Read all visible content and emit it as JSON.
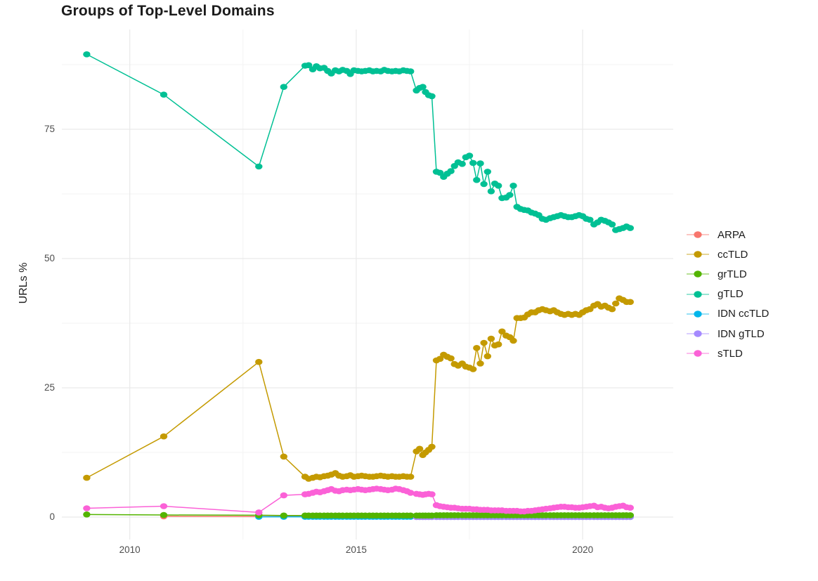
{
  "title": "Groups of Top-Level Domains",
  "axes": {
    "y_title": "URLs %"
  },
  "legend": {
    "items": [
      {
        "label": "ARPA",
        "color": "#F8766D"
      },
      {
        "label": "ccTLD",
        "color": "#C49A00"
      },
      {
        "label": "grTLD",
        "color": "#53B400"
      },
      {
        "label": "gTLD",
        "color": "#00C094"
      },
      {
        "label": "IDN ccTLD",
        "color": "#00B6EB"
      },
      {
        "label": "IDN gTLD",
        "color": "#A58AFF"
      },
      {
        "label": "sTLD",
        "color": "#FB61D7"
      }
    ]
  },
  "chart_data": {
    "type": "line",
    "title": "Groups of Top-Level Domains",
    "xlabel": "",
    "ylabel": "URLs %",
    "legend_position": "right",
    "grid": "on",
    "axis": {
      "xlim": [
        2008.5,
        2022.0
      ],
      "ylim": [
        -4.35,
        94.3
      ],
      "x_ticks": [
        {
          "v": 2010,
          "label": "2010"
        },
        {
          "v": 2015,
          "label": "2015"
        },
        {
          "v": 2020,
          "label": "2020"
        }
      ],
      "y_ticks": [
        {
          "v": 0,
          "label": "0"
        },
        {
          "v": 25,
          "label": "25"
        },
        {
          "v": 50,
          "label": "50"
        },
        {
          "v": 75,
          "label": "75"
        }
      ],
      "x_minor": [
        2012.5,
        2017.5
      ],
      "y_minor": [
        12.5,
        37.5,
        62.5,
        87.5
      ]
    },
    "x_grids": {
      "early": [
        2009.05,
        2010.75,
        2012.85,
        2013.4
      ],
      "mid": [
        2013.87,
        2013.95,
        2014.04,
        2014.12,
        2014.2,
        2014.29,
        2014.37,
        2014.45,
        2014.54,
        2014.62,
        2014.7,
        2014.79,
        2014.87,
        2014.95,
        2015.04,
        2015.12,
        2015.2,
        2015.29,
        2015.37,
        2015.45,
        2015.54,
        2015.62,
        2015.7,
        2015.79,
        2015.87,
        2015.95,
        2016.04,
        2016.12,
        2016.2
      ],
      "gap": [
        2016.33,
        2016.4,
        2016.47,
        2016.53,
        2016.6,
        2016.67
      ],
      "tail": [
        2016.77,
        2016.85,
        2016.93,
        2017.01,
        2017.09,
        2017.17,
        2017.25,
        2017.34,
        2017.42,
        2017.5,
        2017.58,
        2017.66,
        2017.74,
        2017.82,
        2017.9,
        2017.98,
        2018.06,
        2018.14,
        2018.22,
        2018.31,
        2018.39,
        2018.47,
        2018.55,
        2018.63,
        2018.71,
        2018.79,
        2018.87,
        2018.95,
        2019.03,
        2019.11,
        2019.19,
        2019.28,
        2019.36,
        2019.44,
        2019.52,
        2019.6,
        2019.68,
        2019.76,
        2019.84,
        2019.92,
        2020.0,
        2020.08,
        2020.16,
        2020.25,
        2020.33,
        2020.41,
        2020.49,
        2020.57,
        2020.65,
        2020.73,
        2020.81,
        2020.89,
        2020.97,
        2021.05
      ]
    },
    "series": [
      {
        "name": "ARPA",
        "color": "#F8766D",
        "segments": [
          {
            "x": [
              2010.75,
              2012.85
            ],
            "y": [
              0.15,
              0.1
            ]
          },
          {
            "grid": "mid",
            "y": 0.1
          },
          {
            "grid": "gap",
            "y": 0.1
          },
          {
            "grid": "tail",
            "y": 0.1
          }
        ]
      },
      {
        "name": "IDN ccTLD",
        "color": "#00B6EB",
        "segments": [
          {
            "x": [
              2012.85,
              2013.4
            ],
            "y": [
              0.05,
              0.05
            ]
          },
          {
            "grid": "mid",
            "y": 0.05
          },
          {
            "grid": "gap",
            "y": 0.05
          },
          {
            "grid": "tail",
            "y": 0.05
          }
        ]
      },
      {
        "name": "IDN gTLD",
        "color": "#A58AFF",
        "segments": [
          {
            "grid": "gap",
            "y": 0.0
          },
          {
            "grid": "tail",
            "y": 0.0
          }
        ]
      },
      {
        "name": "grTLD",
        "color": "#53B400",
        "segments": [
          {
            "grid": "early",
            "y": [
              0.5,
              0.4,
              0.35,
              0.3
            ]
          },
          {
            "grid": "mid",
            "y": 0.3
          },
          {
            "grid": "gap",
            "y": 0.3
          },
          {
            "grid": "tail",
            "y": 0.35
          }
        ]
      },
      {
        "name": "ccTLD",
        "color": "#C49A00",
        "segments": [
          {
            "grid": "early",
            "y": [
              7.6,
              15.6,
              30.0,
              11.7
            ]
          },
          {
            "grid": "mid",
            "y": [
              7.8,
              7.4,
              7.6,
              7.8,
              7.7,
              7.9,
              8.0,
              8.2,
              8.5,
              8.0,
              7.8,
              7.9,
              8.1,
              7.8,
              7.9,
              8.0,
              7.9,
              7.8,
              7.8,
              7.9,
              8.0,
              7.9,
              7.8,
              7.9,
              7.8,
              7.8,
              7.9,
              7.8,
              7.8
            ]
          },
          {
            "grid": "gap",
            "y": [
              12.7,
              13.2,
              12.0,
              12.5,
              13.0,
              13.6
            ]
          },
          {
            "grid": "tail",
            "y": [
              30.3,
              30.6,
              31.4,
              31.0,
              30.7,
              29.6,
              29.3,
              29.7,
              29.1,
              28.9,
              28.6,
              32.7,
              29.7,
              33.7,
              31.1,
              34.5,
              33.2,
              33.4,
              35.9,
              35.1,
              34.8,
              34.1,
              38.5,
              38.5,
              38.6,
              39.2,
              39.6,
              39.6,
              40.0,
              40.2,
              40.0,
              39.8,
              40.0,
              39.6,
              39.3,
              39.1,
              39.3,
              39.1,
              39.3,
              39.1,
              39.6,
              40.0,
              40.2,
              40.9,
              41.2,
              40.7,
              40.9,
              40.5,
              40.2,
              41.3,
              42.3,
              42.0,
              41.6,
              41.6
            ]
          }
        ]
      },
      {
        "name": "gTLD",
        "color": "#00C094",
        "segments": [
          {
            "grid": "early",
            "y": [
              89.5,
              81.7,
              67.8,
              83.2
            ]
          },
          {
            "grid": "mid",
            "y": [
              87.3,
              87.4,
              86.6,
              87.2,
              86.8,
              86.9,
              86.3,
              85.8,
              86.4,
              86.2,
              86.5,
              86.3,
              85.7,
              86.4,
              86.3,
              86.2,
              86.3,
              86.4,
              86.2,
              86.3,
              86.2,
              86.5,
              86.3,
              86.2,
              86.3,
              86.2,
              86.4,
              86.3,
              86.2
            ]
          },
          {
            "grid": "gap",
            "y": [
              82.5,
              83.0,
              83.2,
              82.2,
              81.6,
              81.4
            ]
          },
          {
            "grid": "tail",
            "y": [
              66.8,
              66.6,
              65.8,
              66.4,
              66.9,
              67.9,
              68.6,
              68.3,
              69.6,
              69.9,
              68.5,
              65.2,
              68.4,
              64.4,
              66.8,
              63.0,
              64.5,
              64.1,
              61.7,
              61.8,
              62.3,
              64.1,
              60.0,
              59.6,
              59.4,
              59.3,
              58.9,
              58.7,
              58.4,
              57.7,
              57.5,
              57.8,
              58.0,
              58.2,
              58.4,
              58.2,
              58.0,
              58.0,
              58.2,
              58.4,
              58.2,
              57.7,
              57.5,
              56.6,
              57.0,
              57.5,
              57.3,
              57.0,
              56.6,
              55.5,
              55.7,
              55.9,
              56.2,
              55.9
            ]
          }
        ]
      },
      {
        "name": "sTLD",
        "color": "#FB61D7",
        "segments": [
          {
            "grid": "early",
            "y": [
              1.7,
              2.1,
              0.9,
              4.2
            ]
          },
          {
            "grid": "mid",
            "y": [
              4.4,
              4.5,
              4.7,
              4.9,
              4.8,
              5.0,
              5.2,
              5.4,
              5.1,
              5.0,
              5.2,
              5.3,
              5.2,
              5.3,
              5.4,
              5.3,
              5.2,
              5.3,
              5.4,
              5.5,
              5.4,
              5.3,
              5.2,
              5.3,
              5.5,
              5.4,
              5.2,
              5.0,
              4.7
            ]
          },
          {
            "grid": "gap",
            "y": [
              4.5,
              4.4,
              4.3,
              4.4,
              4.5,
              4.4
            ]
          },
          {
            "grid": "tail",
            "y": [
              2.3,
              2.1,
              2.0,
              1.9,
              1.8,
              1.8,
              1.7,
              1.6,
              1.6,
              1.6,
              1.5,
              1.5,
              1.4,
              1.4,
              1.4,
              1.3,
              1.3,
              1.3,
              1.3,
              1.2,
              1.2,
              1.2,
              1.2,
              1.1,
              1.1,
              1.2,
              1.2,
              1.3,
              1.4,
              1.5,
              1.6,
              1.7,
              1.8,
              1.9,
              2.0,
              2.0,
              1.9,
              1.9,
              1.8,
              1.8,
              1.9,
              2.0,
              2.1,
              2.2,
              1.9,
              2.0,
              1.8,
              1.7,
              1.8,
              2.0,
              2.1,
              2.2,
              1.9,
              1.8
            ]
          }
        ]
      }
    ]
  }
}
